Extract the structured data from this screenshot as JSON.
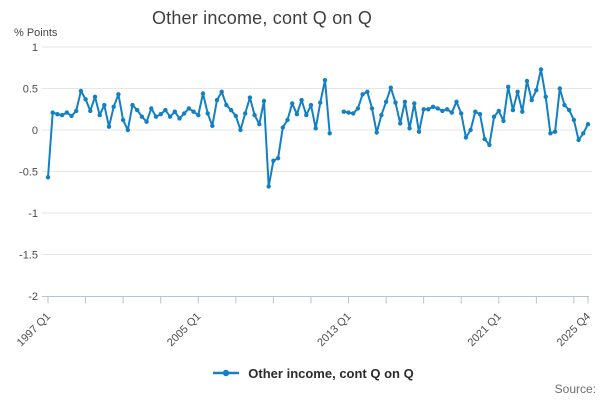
{
  "title": "Other income, cont Q on Q",
  "y_axis": {
    "unit_label": "% Points",
    "tick_labels": [
      "1",
      "0.5",
      "0",
      "-0.5",
      "-1",
      "-1.5",
      "-2"
    ],
    "tick_values": [
      1,
      0.5,
      0,
      -0.5,
      -1,
      -1.5,
      -2
    ]
  },
  "x_axis": {
    "labels": [
      {
        "label": "1997 Q1",
        "index": 0
      },
      {
        "label": "2005 Q1",
        "index": 32
      },
      {
        "label": "2013 Q1",
        "index": 64
      },
      {
        "label": "2021 Q1",
        "index": 96
      },
      {
        "label": "2025 Q4",
        "index": 115
      }
    ],
    "minor_tick_every_quarters": 8
  },
  "legend": {
    "label": "Other income, cont Q on Q"
  },
  "source": {
    "label": "Source:"
  },
  "colors": {
    "line": "#1380c3",
    "grid": "#e6e6e6",
    "axis": "#b6c3d4",
    "title_text": "#3e3e3e",
    "tick_text": "#4d4d4d",
    "source_text": "#6f6f6f"
  },
  "chart_data": {
    "type": "line",
    "title": "Other income, cont Q on Q",
    "xlabel": "",
    "ylabel": "% Points",
    "ylim": [
      -2,
      1
    ],
    "y_gridlines": [
      1,
      0.5,
      0,
      -0.5,
      -1,
      -1.5,
      -2
    ],
    "x_start": "1997 Q1",
    "x_end": "2025 Q4",
    "frequency": "quarterly",
    "grid": "horizontal-only",
    "legend_position": "bottom-center",
    "marker": "circle",
    "x_tick_labels": [
      {
        "label": "1997 Q1",
        "index": 0
      },
      {
        "label": "2005 Q1",
        "index": 32
      },
      {
        "label": "2013 Q1",
        "index": 64
      },
      {
        "label": "2021 Q1",
        "index": 96
      },
      {
        "label": "2025 Q4",
        "index": 115
      }
    ],
    "series": [
      {
        "name": "Other income, cont Q on Q",
        "color": "#1380c3",
        "values": [
          -0.57,
          0.21,
          0.19,
          0.18,
          0.21,
          0.17,
          0.23,
          0.47,
          0.37,
          0.23,
          0.4,
          0.18,
          0.3,
          0.04,
          0.28,
          0.43,
          0.12,
          0.0,
          0.3,
          0.24,
          0.16,
          0.1,
          0.26,
          0.16,
          0.19,
          0.24,
          0.16,
          0.22,
          0.14,
          0.2,
          0.26,
          0.22,
          0.18,
          0.44,
          0.2,
          0.05,
          0.36,
          0.46,
          0.3,
          0.24,
          0.17,
          0.0,
          0.2,
          0.39,
          0.18,
          0.07,
          0.35,
          -0.68,
          -0.37,
          -0.34,
          0.03,
          0.12,
          0.32,
          0.19,
          0.36,
          0.18,
          0.3,
          0.02,
          0.33,
          0.6,
          -0.04,
          null,
          null,
          0.22,
          0.21,
          0.2,
          0.26,
          0.43,
          0.46,
          0.26,
          -0.03,
          0.18,
          0.34,
          0.51,
          0.33,
          0.08,
          0.34,
          0.02,
          0.32,
          -0.02,
          0.25,
          0.25,
          0.28,
          0.26,
          0.23,
          0.25,
          0.21,
          0.34,
          0.2,
          -0.09,
          0.0,
          0.22,
          0.19,
          -0.11,
          -0.18,
          0.16,
          0.23,
          0.11,
          0.52,
          0.24,
          0.46,
          0.22,
          0.59,
          0.36,
          0.48,
          0.73,
          0.4,
          -0.04,
          -0.02,
          0.5,
          0.3,
          0.24,
          0.12,
          -0.12,
          -0.04,
          0.07
        ]
      }
    ]
  }
}
